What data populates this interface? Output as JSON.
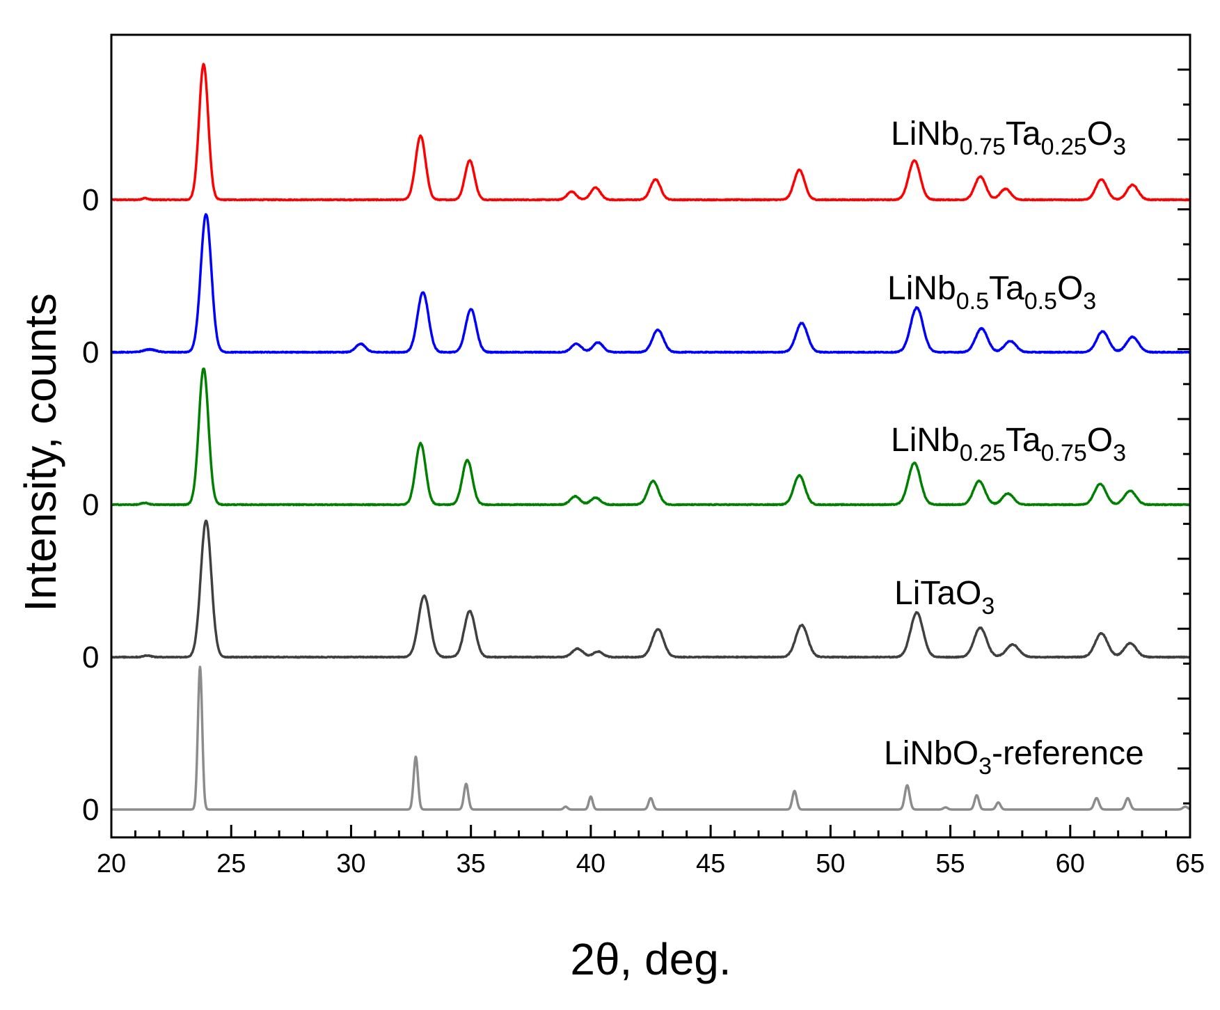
{
  "chart_data": {
    "type": "line",
    "title": "",
    "xlabel": "2θ, deg.",
    "ylabel": "Intensity, counts",
    "xlim": [
      20,
      65
    ],
    "xticks": [
      "20",
      "25",
      "30",
      "35",
      "40",
      "45",
      "50",
      "55",
      "60",
      "65"
    ],
    "grid": false,
    "legend": "inline labels at right of each trace",
    "series": [
      {
        "name": "LiNb0.75Ta0.25O3",
        "label": {
          "base": "LiNb",
          "sub1": "0.75",
          "mid": "Ta",
          "sub2": "0.25",
          "tail": "O",
          "sub3": "3"
        },
        "zero_label": "0",
        "color": "#ff0000",
        "peaks": [
          [
            21.4,
            0.012,
            0.12
          ],
          [
            23.85,
            1.0,
            0.19
          ],
          [
            32.9,
            0.47,
            0.21
          ],
          [
            34.95,
            0.29,
            0.2
          ],
          [
            39.2,
            0.06,
            0.19
          ],
          [
            40.2,
            0.09,
            0.2
          ],
          [
            42.7,
            0.15,
            0.21
          ],
          [
            48.7,
            0.22,
            0.22
          ],
          [
            53.5,
            0.29,
            0.24
          ],
          [
            56.25,
            0.17,
            0.23
          ],
          [
            57.3,
            0.08,
            0.22
          ],
          [
            61.3,
            0.15,
            0.23
          ],
          [
            62.6,
            0.11,
            0.23
          ]
        ]
      },
      {
        "name": "LiNb0.5Ta0.5O3",
        "label": {
          "base": "LiNb",
          "sub1": "0.5",
          "mid": "Ta",
          "sub2": "0.5",
          "tail": "O",
          "sub3": "3"
        },
        "zero_label": "0",
        "color": "#0000ff",
        "peaks": [
          [
            21.6,
            0.02,
            0.25
          ],
          [
            23.95,
            0.99,
            0.22
          ],
          [
            30.4,
            0.06,
            0.2
          ],
          [
            33.0,
            0.43,
            0.23
          ],
          [
            35.0,
            0.31,
            0.22
          ],
          [
            39.4,
            0.06,
            0.21
          ],
          [
            40.3,
            0.07,
            0.21
          ],
          [
            42.8,
            0.16,
            0.23
          ],
          [
            48.8,
            0.21,
            0.24
          ],
          [
            53.6,
            0.32,
            0.26
          ],
          [
            56.3,
            0.17,
            0.25
          ],
          [
            57.5,
            0.08,
            0.24
          ],
          [
            61.35,
            0.15,
            0.25
          ],
          [
            62.6,
            0.11,
            0.25
          ]
        ]
      },
      {
        "name": "LiNb0.25Ta0.75O3",
        "label": {
          "base": "LiNb",
          "sub1": "0.25",
          "mid": "Ta",
          "sub2": "0.75",
          "tail": "O",
          "sub3": "3"
        },
        "zero_label": "0",
        "color": "#008000",
        "peaks": [
          [
            21.4,
            0.012,
            0.15
          ],
          [
            23.85,
            0.98,
            0.2
          ],
          [
            32.9,
            0.44,
            0.21
          ],
          [
            34.85,
            0.32,
            0.21
          ],
          [
            39.35,
            0.06,
            0.2
          ],
          [
            40.2,
            0.05,
            0.2
          ],
          [
            42.6,
            0.17,
            0.22
          ],
          [
            48.7,
            0.21,
            0.23
          ],
          [
            53.5,
            0.3,
            0.25
          ],
          [
            56.2,
            0.17,
            0.24
          ],
          [
            57.4,
            0.08,
            0.23
          ],
          [
            61.25,
            0.15,
            0.24
          ],
          [
            62.5,
            0.1,
            0.24
          ]
        ]
      },
      {
        "name": "LiTaO3",
        "label": {
          "base": "LiTaO",
          "sub1": "3",
          "mid": "",
          "sub2": "",
          "tail": "",
          "sub3": ""
        },
        "zero_label": "0",
        "color": "#404040",
        "peaks": [
          [
            21.5,
            0.012,
            0.15
          ],
          [
            23.95,
            0.98,
            0.22
          ],
          [
            33.05,
            0.44,
            0.24
          ],
          [
            34.95,
            0.33,
            0.23
          ],
          [
            39.45,
            0.06,
            0.22
          ],
          [
            40.3,
            0.04,
            0.2
          ],
          [
            42.8,
            0.2,
            0.24
          ],
          [
            48.8,
            0.23,
            0.25
          ],
          [
            53.6,
            0.32,
            0.26
          ],
          [
            56.25,
            0.21,
            0.26
          ],
          [
            57.6,
            0.09,
            0.26
          ],
          [
            61.3,
            0.17,
            0.26
          ],
          [
            62.5,
            0.1,
            0.25
          ]
        ]
      },
      {
        "name": "LiNbO3-reference",
        "label": {
          "base": "LiNbO",
          "sub1": "3",
          "mid": "-reference",
          "sub2": "",
          "tail": "",
          "sub3": ""
        },
        "zero_label": "0",
        "color": "#8c8c8c",
        "peaks": [
          [
            23.7,
            1.0,
            0.09
          ],
          [
            32.7,
            0.37,
            0.09
          ],
          [
            34.8,
            0.18,
            0.09
          ],
          [
            38.95,
            0.02,
            0.08
          ],
          [
            40.0,
            0.09,
            0.08
          ],
          [
            42.5,
            0.08,
            0.09
          ],
          [
            48.5,
            0.13,
            0.09
          ],
          [
            53.2,
            0.17,
            0.1
          ],
          [
            54.8,
            0.015,
            0.09
          ],
          [
            56.1,
            0.1,
            0.09
          ],
          [
            57.0,
            0.05,
            0.09
          ],
          [
            61.1,
            0.08,
            0.1
          ],
          [
            62.4,
            0.08,
            0.1
          ],
          [
            64.8,
            0.02,
            0.1
          ]
        ]
      }
    ]
  }
}
